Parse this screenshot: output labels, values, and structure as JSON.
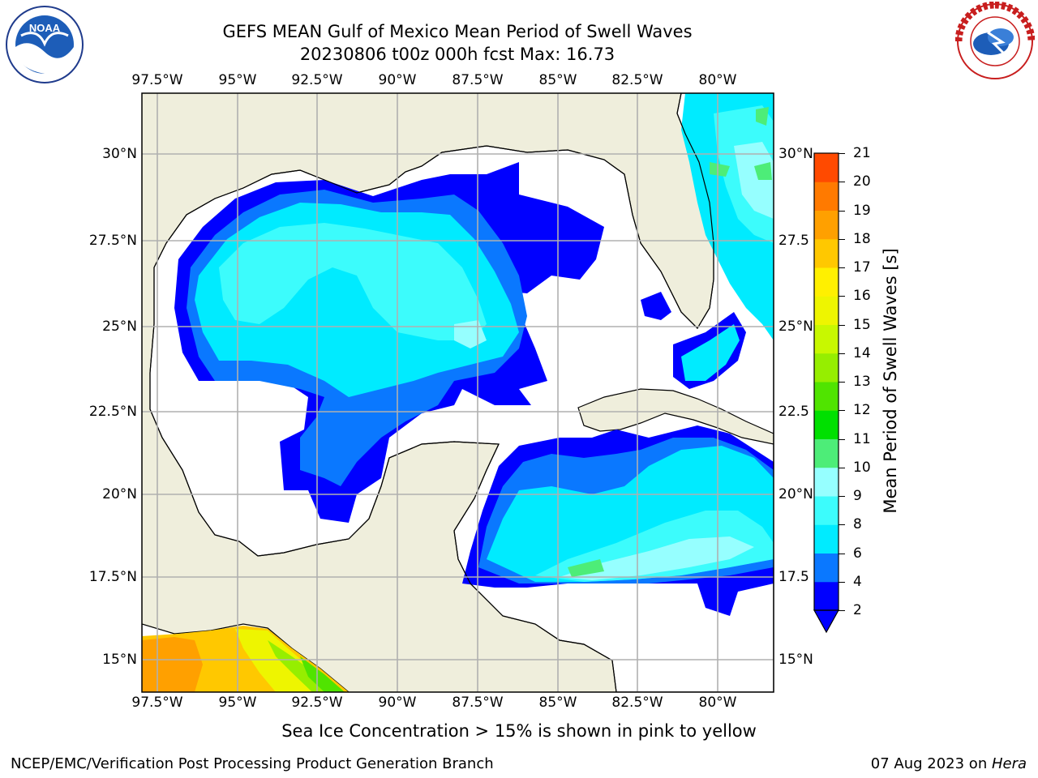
{
  "header": {
    "title_line1": "GEFS MEAN Gulf of Mexico Mean Period of Swell Waves",
    "title_line2": "20230806 t00z 000h fcst   Max: 16.73"
  },
  "logos": {
    "left_text": "NOAA",
    "right_text": "NATIONAL WEATHER SERVICE"
  },
  "map": {
    "lon_labels": [
      "97.5°W",
      "95°W",
      "92.5°W",
      "90°W",
      "87.5°W",
      "85°W",
      "82.5°W",
      "80°W"
    ],
    "lat_labels": [
      "30°N",
      "27.5°N",
      "25°N",
      "22.5°N",
      "20°N",
      "17.5°N",
      "15°N"
    ],
    "lat_labels_right": [
      "30°N",
      "27.5",
      "25°N",
      "22.5",
      "20°N",
      "17.5",
      "15°N"
    ],
    "land_color": "#efeedc",
    "ocean_color": "#ffffff",
    "grid_color": "#b0b0b0"
  },
  "colorbar": {
    "title": "Mean Period of Swell Waves [s]",
    "ticks": [
      "2",
      "4",
      "6",
      "8",
      "9",
      "10",
      "11",
      "12",
      "13",
      "14",
      "15",
      "16",
      "17",
      "18",
      "19",
      "20",
      "21"
    ],
    "colors": [
      "#0000ff",
      "#0a78ff",
      "#00ebff",
      "#3cfcfc",
      "#96ffff",
      "#4ded78",
      "#00e000",
      "#50e400",
      "#96ee00",
      "#c8f800",
      "#eef500",
      "#fff000",
      "#ffc800",
      "#ffa000",
      "#ff7a00",
      "#ff4a00",
      "#ff1400"
    ]
  },
  "footer": {
    "note": "Sea Ice Concentration > 15% is shown in pink to yellow",
    "left": "NCEP/EMC/Verification Post Processing Product Generation Branch",
    "right_prefix": "07 Aug 2023 on ",
    "right_host": "Hera"
  }
}
